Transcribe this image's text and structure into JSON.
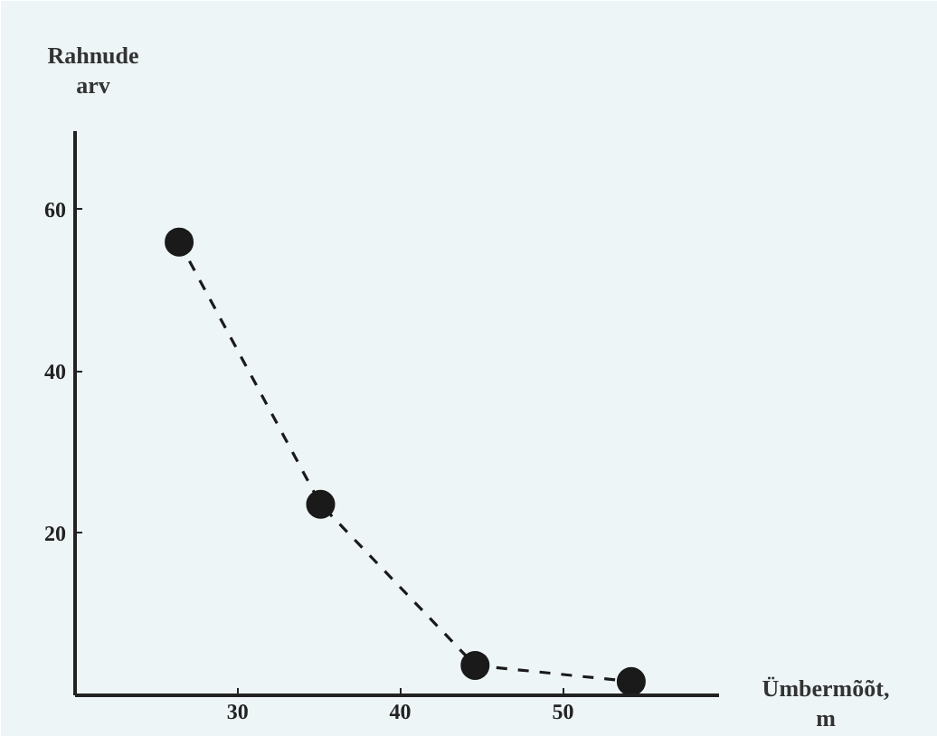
{
  "chart_data": {
    "type": "line",
    "xlabel": "Ümbermõõt, m",
    "ylabel": "Rahnude arv",
    "x": [
      26.4,
      35.1,
      44.6,
      54.2
    ],
    "series": [
      {
        "color": "#1a1a1a",
        "values": [
          56,
          23.6,
          3.7,
          1.7
        ]
      }
    ],
    "xlim": [
      20,
      59.6
    ],
    "ylim": [
      0,
      69.7
    ],
    "xticks": [
      30,
      40,
      50
    ],
    "yticks": [
      20,
      40,
      60
    ],
    "marker": "circle",
    "line_style": "dashed",
    "grid": false
  }
}
